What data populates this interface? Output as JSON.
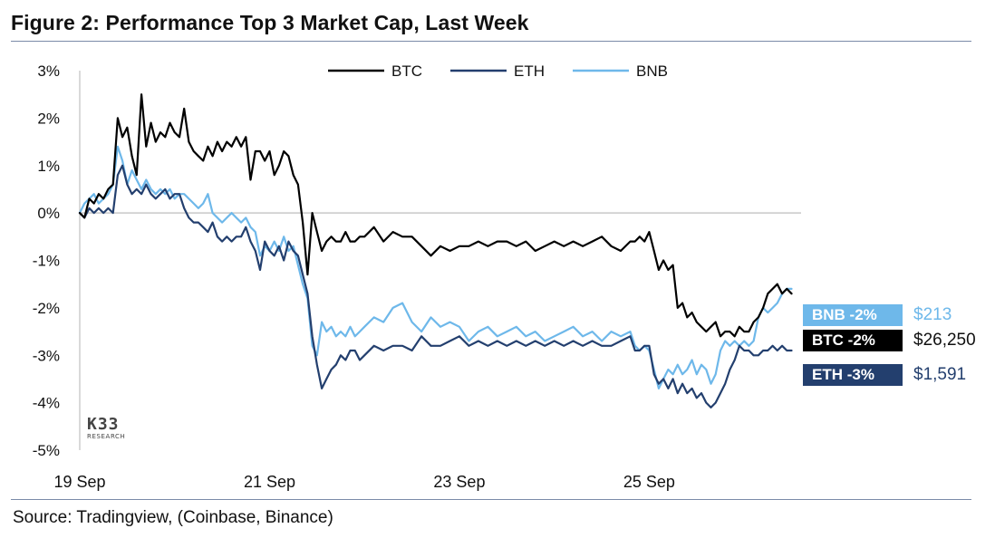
{
  "figure": {
    "title": "Figure 2: Performance Top 3 Market Cap, Last Week",
    "source": "Source: Tradingview, (Coinbase, Binance)"
  },
  "logo": {
    "main": "K33",
    "sub": "RESEARCH"
  },
  "colors": {
    "BTC": "#000000",
    "ETH": "#233f6e",
    "BNB": "#6eb8ea",
    "zero_line": "#c8c8c8",
    "axis_line": "#c0c0c0"
  },
  "end_labels": [
    {
      "tag": "BNB -2%",
      "value": "$213",
      "series": "BNB"
    },
    {
      "tag": "BTC -2%",
      "value": "$26,250",
      "series": "BTC"
    },
    {
      "tag": "ETH -3%",
      "value": "$1,591",
      "series": "ETH"
    }
  ],
  "chart_data": {
    "type": "line",
    "title": "Figure 2: Performance Top 3 Market Cap, Last Week",
    "xlabel": "",
    "ylabel": "",
    "y_unit": "%",
    "ylim": [
      -5,
      3
    ],
    "yticks": [
      3,
      2,
      1,
      0,
      -1,
      -2,
      -3,
      -4,
      -5
    ],
    "ytick_labels": [
      "3%",
      "2%",
      "1%",
      "0%",
      "-1%",
      "-2%",
      "-3%",
      "-4%",
      "-5%"
    ],
    "xlim": [
      0,
      7.6
    ],
    "xticks": [
      0,
      2,
      4,
      6
    ],
    "xtick_labels": [
      "19 Sep",
      "21 Sep",
      "23 Sep",
      "25 Sep"
    ],
    "x_unit": "days since 19 Sep",
    "grid": false,
    "zero_line": true,
    "legend": "top-center",
    "series": [
      {
        "name": "BTC",
        "x": [
          0,
          0.05,
          0.1,
          0.15,
          0.2,
          0.25,
          0.3,
          0.35,
          0.4,
          0.45,
          0.5,
          0.55,
          0.6,
          0.65,
          0.7,
          0.75,
          0.8,
          0.85,
          0.9,
          0.95,
          1.0,
          1.05,
          1.1,
          1.15,
          1.2,
          1.25,
          1.3,
          1.35,
          1.4,
          1.45,
          1.5,
          1.55,
          1.6,
          1.65,
          1.7,
          1.75,
          1.8,
          1.85,
          1.9,
          1.95,
          2.0,
          2.05,
          2.1,
          2.15,
          2.2,
          2.25,
          2.3,
          2.35,
          2.4,
          2.45,
          2.5,
          2.55,
          2.6,
          2.65,
          2.7,
          2.75,
          2.8,
          2.85,
          2.9,
          2.95,
          3.0,
          3.1,
          3.2,
          3.3,
          3.4,
          3.5,
          3.6,
          3.7,
          3.8,
          3.9,
          4.0,
          4.1,
          4.2,
          4.3,
          4.4,
          4.5,
          4.6,
          4.7,
          4.8,
          4.9,
          5.0,
          5.1,
          5.2,
          5.3,
          5.4,
          5.5,
          5.6,
          5.7,
          5.8,
          5.85,
          5.9,
          5.95,
          6.0,
          6.05,
          6.1,
          6.15,
          6.2,
          6.25,
          6.3,
          6.35,
          6.4,
          6.45,
          6.5,
          6.55,
          6.6,
          6.65,
          6.7,
          6.75,
          6.8,
          6.85,
          6.9,
          6.95,
          7.0,
          7.05,
          7.1,
          7.15,
          7.2,
          7.25,
          7.3,
          7.35,
          7.4,
          7.45,
          7.5
        ],
        "values": [
          0.0,
          -0.1,
          0.3,
          0.2,
          0.4,
          0.3,
          0.5,
          0.6,
          2.0,
          1.6,
          1.8,
          1.2,
          0.8,
          2.5,
          1.4,
          1.9,
          1.5,
          1.7,
          1.6,
          1.9,
          1.7,
          1.6,
          2.2,
          1.5,
          1.3,
          1.2,
          1.1,
          1.4,
          1.2,
          1.5,
          1.3,
          1.5,
          1.4,
          1.6,
          1.4,
          1.6,
          0.7,
          1.3,
          1.3,
          1.1,
          1.3,
          0.8,
          1.0,
          1.3,
          1.2,
          0.8,
          0.6,
          -0.2,
          -1.3,
          0.0,
          -0.4,
          -0.8,
          -0.6,
          -0.5,
          -0.6,
          -0.6,
          -0.4,
          -0.6,
          -0.6,
          -0.5,
          -0.5,
          -0.3,
          -0.6,
          -0.4,
          -0.5,
          -0.5,
          -0.7,
          -0.9,
          -0.7,
          -0.8,
          -0.7,
          -0.7,
          -0.6,
          -0.7,
          -0.6,
          -0.6,
          -0.7,
          -0.6,
          -0.8,
          -0.7,
          -0.6,
          -0.7,
          -0.6,
          -0.7,
          -0.6,
          -0.5,
          -0.7,
          -0.8,
          -0.6,
          -0.6,
          -0.5,
          -0.6,
          -0.4,
          -0.8,
          -1.2,
          -1.0,
          -1.2,
          -1.1,
          -2.0,
          -1.9,
          -2.2,
          -2.1,
          -2.3,
          -2.4,
          -2.5,
          -2.4,
          -2.3,
          -2.6,
          -2.5,
          -2.5,
          -2.6,
          -2.4,
          -2.5,
          -2.5,
          -2.3,
          -2.2,
          -2.0,
          -1.7,
          -1.6,
          -1.5,
          -1.7,
          -1.6,
          -1.7
        ]
      },
      {
        "name": "ETH",
        "x": [
          0,
          0.05,
          0.1,
          0.15,
          0.2,
          0.25,
          0.3,
          0.35,
          0.4,
          0.45,
          0.5,
          0.55,
          0.6,
          0.65,
          0.7,
          0.75,
          0.8,
          0.85,
          0.9,
          0.95,
          1.0,
          1.05,
          1.1,
          1.15,
          1.2,
          1.25,
          1.3,
          1.35,
          1.4,
          1.45,
          1.5,
          1.55,
          1.6,
          1.65,
          1.7,
          1.75,
          1.8,
          1.85,
          1.9,
          1.95,
          2.0,
          2.05,
          2.1,
          2.15,
          2.2,
          2.25,
          2.3,
          2.35,
          2.4,
          2.45,
          2.5,
          2.55,
          2.6,
          2.65,
          2.7,
          2.75,
          2.8,
          2.85,
          2.9,
          2.95,
          3.0,
          3.1,
          3.2,
          3.3,
          3.4,
          3.5,
          3.6,
          3.7,
          3.8,
          3.9,
          4.0,
          4.1,
          4.2,
          4.3,
          4.4,
          4.5,
          4.6,
          4.7,
          4.8,
          4.9,
          5.0,
          5.1,
          5.2,
          5.3,
          5.4,
          5.5,
          5.6,
          5.7,
          5.8,
          5.85,
          5.9,
          5.95,
          6.0,
          6.05,
          6.1,
          6.15,
          6.2,
          6.25,
          6.3,
          6.35,
          6.4,
          6.45,
          6.5,
          6.55,
          6.6,
          6.65,
          6.7,
          6.75,
          6.8,
          6.85,
          6.9,
          6.95,
          7.0,
          7.05,
          7.1,
          7.15,
          7.2,
          7.25,
          7.3,
          7.35,
          7.4,
          7.45,
          7.5
        ],
        "values": [
          0.0,
          -0.1,
          0.1,
          0.0,
          0.1,
          0.0,
          0.1,
          0.0,
          0.8,
          1.0,
          0.6,
          0.4,
          0.5,
          0.4,
          0.6,
          0.4,
          0.3,
          0.4,
          0.5,
          0.3,
          0.4,
          0.4,
          0.1,
          -0.1,
          -0.2,
          -0.2,
          -0.3,
          -0.4,
          -0.2,
          -0.5,
          -0.6,
          -0.5,
          -0.6,
          -0.5,
          -0.5,
          -0.3,
          -0.6,
          -0.8,
          -1.2,
          -0.6,
          -0.8,
          -0.9,
          -0.7,
          -1.0,
          -0.6,
          -0.8,
          -0.9,
          -1.3,
          -1.7,
          -2.6,
          -3.2,
          -3.7,
          -3.5,
          -3.3,
          -3.2,
          -3.0,
          -3.1,
          -2.9,
          -2.9,
          -3.1,
          -3.0,
          -2.8,
          -2.9,
          -2.8,
          -2.8,
          -2.9,
          -2.6,
          -2.8,
          -2.8,
          -2.7,
          -2.6,
          -2.8,
          -2.7,
          -2.8,
          -2.7,
          -2.8,
          -2.7,
          -2.8,
          -2.7,
          -2.8,
          -2.7,
          -2.8,
          -2.7,
          -2.8,
          -2.7,
          -2.8,
          -2.8,
          -2.7,
          -2.6,
          -2.9,
          -2.9,
          -2.8,
          -2.8,
          -3.4,
          -3.6,
          -3.5,
          -3.7,
          -3.5,
          -3.8,
          -3.6,
          -3.8,
          -3.7,
          -3.9,
          -3.8,
          -4.0,
          -4.1,
          -4.0,
          -3.8,
          -3.6,
          -3.3,
          -3.1,
          -2.8,
          -2.9,
          -2.9,
          -3.0,
          -3.0,
          -2.9,
          -2.9,
          -2.8,
          -2.9,
          -2.8,
          -2.9,
          -2.9
        ]
      },
      {
        "name": "BNB",
        "x": [
          0,
          0.05,
          0.1,
          0.15,
          0.2,
          0.25,
          0.3,
          0.35,
          0.4,
          0.45,
          0.5,
          0.55,
          0.6,
          0.65,
          0.7,
          0.75,
          0.8,
          0.85,
          0.9,
          0.95,
          1.0,
          1.05,
          1.1,
          1.15,
          1.2,
          1.25,
          1.3,
          1.35,
          1.4,
          1.45,
          1.5,
          1.55,
          1.6,
          1.65,
          1.7,
          1.75,
          1.8,
          1.85,
          1.9,
          1.95,
          2.0,
          2.05,
          2.1,
          2.15,
          2.2,
          2.25,
          2.3,
          2.35,
          2.4,
          2.45,
          2.5,
          2.55,
          2.6,
          2.65,
          2.7,
          2.75,
          2.8,
          2.85,
          2.9,
          2.95,
          3.0,
          3.1,
          3.2,
          3.3,
          3.4,
          3.5,
          3.6,
          3.7,
          3.8,
          3.9,
          4.0,
          4.1,
          4.2,
          4.3,
          4.4,
          4.5,
          4.6,
          4.7,
          4.8,
          4.9,
          5.0,
          5.1,
          5.2,
          5.3,
          5.4,
          5.5,
          5.6,
          5.7,
          5.8,
          5.85,
          5.9,
          5.95,
          6.0,
          6.05,
          6.1,
          6.15,
          6.2,
          6.25,
          6.3,
          6.35,
          6.4,
          6.45,
          6.5,
          6.55,
          6.6,
          6.65,
          6.7,
          6.75,
          6.8,
          6.85,
          6.9,
          6.95,
          7.0,
          7.05,
          7.1,
          7.15,
          7.2,
          7.25,
          7.3,
          7.35,
          7.4,
          7.45,
          7.5
        ],
        "values": [
          0.0,
          0.2,
          0.3,
          0.4,
          0.2,
          0.3,
          0.4,
          0.6,
          1.4,
          1.1,
          0.6,
          0.9,
          0.7,
          0.5,
          0.7,
          0.5,
          0.4,
          0.5,
          0.4,
          0.5,
          0.3,
          0.4,
          0.4,
          0.3,
          0.2,
          0.1,
          0.2,
          0.4,
          0.0,
          -0.1,
          -0.2,
          -0.1,
          0.0,
          -0.1,
          -0.2,
          -0.1,
          -0.3,
          -0.4,
          -0.9,
          -0.7,
          -0.8,
          -0.6,
          -0.8,
          -0.5,
          -0.8,
          -0.7,
          -1.1,
          -1.5,
          -1.8,
          -2.8,
          -3.0,
          -2.3,
          -2.5,
          -2.4,
          -2.6,
          -2.5,
          -2.6,
          -2.4,
          -2.6,
          -2.5,
          -2.4,
          -2.2,
          -2.3,
          -2.0,
          -1.9,
          -2.3,
          -2.5,
          -2.2,
          -2.4,
          -2.3,
          -2.4,
          -2.7,
          -2.5,
          -2.4,
          -2.6,
          -2.5,
          -2.4,
          -2.6,
          -2.5,
          -2.7,
          -2.6,
          -2.5,
          -2.4,
          -2.6,
          -2.5,
          -2.7,
          -2.5,
          -2.6,
          -2.5,
          -2.8,
          -2.9,
          -2.8,
          -2.9,
          -3.3,
          -3.7,
          -3.5,
          -3.3,
          -3.4,
          -3.2,
          -3.4,
          -3.3,
          -3.1,
          -3.4,
          -3.2,
          -3.3,
          -3.6,
          -3.4,
          -2.9,
          -2.7,
          -2.8,
          -2.7,
          -2.8,
          -2.7,
          -2.8,
          -2.7,
          -2.2,
          -2.0,
          -2.1,
          -2.0,
          -1.9,
          -1.7,
          -1.6,
          -1.6
        ]
      }
    ]
  }
}
